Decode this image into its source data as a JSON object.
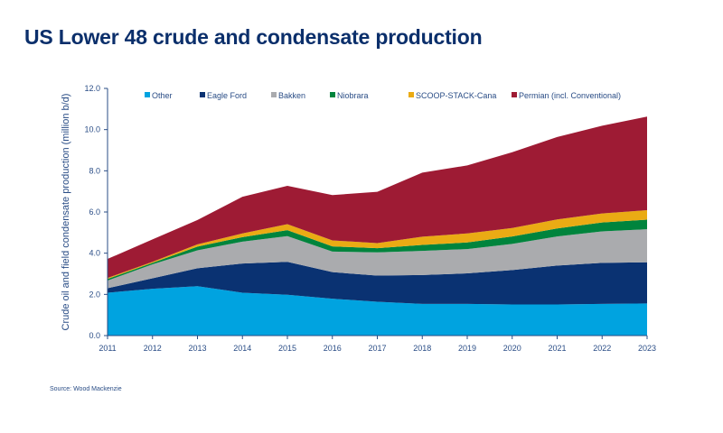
{
  "title": "US Lower 48 crude and condensate production",
  "source": "Source: Wood Mackenzie",
  "chart_data": {
    "type": "area",
    "stacked": true,
    "title": "US Lower 48 crude and condensate production",
    "xlabel": "",
    "ylabel": "Crude oil and field condensate production (million b/d)",
    "ylim": [
      0,
      12
    ],
    "yticks": [
      "0.0",
      "2.0",
      "4.0",
      "6.0",
      "8.0",
      "10.0",
      "12.0"
    ],
    "x": [
      "2011",
      "2012",
      "2013",
      "2014",
      "2015",
      "2016",
      "2017",
      "2018",
      "2019",
      "2020",
      "2021",
      "2022",
      "2023"
    ],
    "legend_position": "top",
    "grid": false,
    "series": [
      {
        "name": "Other",
        "color": "#00a3e0",
        "values": [
          2.08,
          2.27,
          2.4,
          2.08,
          1.98,
          1.79,
          1.64,
          1.54,
          1.54,
          1.51,
          1.51,
          1.54,
          1.56
        ]
      },
      {
        "name": "Eagle Ford",
        "color": "#0a3272",
        "values": [
          0.22,
          0.51,
          0.87,
          1.42,
          1.6,
          1.29,
          1.27,
          1.4,
          1.48,
          1.67,
          1.89,
          1.99,
          2.0
        ]
      },
      {
        "name": "Bakken",
        "color": "#aaabae",
        "values": [
          0.37,
          0.68,
          0.87,
          1.06,
          1.25,
          1.0,
          1.13,
          1.17,
          1.18,
          1.27,
          1.41,
          1.53,
          1.6
        ]
      },
      {
        "name": "Niobrara",
        "color": "#00843d",
        "values": [
          0.08,
          0.07,
          0.18,
          0.22,
          0.29,
          0.25,
          0.2,
          0.29,
          0.32,
          0.36,
          0.39,
          0.43,
          0.47
        ]
      },
      {
        "name": "SCOOP-STACK-Cana",
        "color": "#eaab14",
        "values": [
          0.05,
          0.05,
          0.11,
          0.18,
          0.29,
          0.29,
          0.25,
          0.4,
          0.44,
          0.41,
          0.44,
          0.44,
          0.46
        ]
      },
      {
        "name": "Permian (incl. Conventional)",
        "color": "#9e1b34",
        "values": [
          0.92,
          1.09,
          1.18,
          1.78,
          1.86,
          2.2,
          2.49,
          3.11,
          3.3,
          3.68,
          4.0,
          4.26,
          4.54
        ]
      }
    ]
  }
}
